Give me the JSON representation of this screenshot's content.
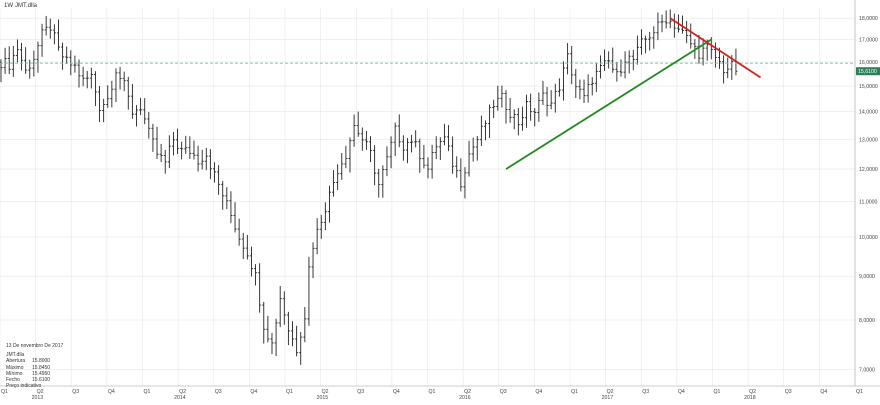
{
  "header": {
    "interval": "1W",
    "symbol": "JMT.dlla"
  },
  "info": {
    "date": "13 De novembro De 2017",
    "symbol": "JMT.dlla",
    "rows": [
      {
        "label": "Abertura",
        "value": "15.8000"
      },
      {
        "label": "Máximo",
        "value": "15.8450"
      },
      {
        "label": "Mínimo",
        "value": "15.4950"
      },
      {
        "label": "Fecho",
        "value": "15.6100"
      },
      {
        "label": "Preço indicativo",
        "value": ""
      }
    ]
  },
  "colors": {
    "bars": "#222222",
    "grid": "#e6e6e6",
    "uptrend": "#1f8a1f",
    "downtrend": "#d42020",
    "hline": "#6fc3a0",
    "price_tag": "#2e7d5b"
  },
  "chart_data": {
    "type": "ohlc",
    "y_scale": "log",
    "ylim": [
      6.7,
      18.5
    ],
    "y_ticks": [
      7,
      8,
      9,
      10,
      11,
      12,
      13,
      14,
      15,
      16,
      17,
      18
    ],
    "y_tick_labels": [
      "7,0000",
      "8,0000",
      "9,0000",
      "10,0000",
      "11,0000",
      "12,0000",
      "13,0000",
      "14,0000",
      "15,0000",
      "16,0000",
      "17,0000",
      "18,0000"
    ],
    "x_quarter_labels": [
      "Q1",
      "Q2",
      "Q3",
      "Q4",
      "Q1",
      "Q2",
      "Q3",
      "Q4",
      "Q1",
      "Q2",
      "Q3",
      "Q4",
      "Q1",
      "Q2",
      "Q3",
      "Q4",
      "Q1",
      "Q2",
      "Q3",
      "Q4",
      "Q1",
      "Q2",
      "Q3",
      "Q4",
      "Q1"
    ],
    "x_year_labels": [
      {
        "label": "2013",
        "quarter_index": 1
      },
      {
        "label": "2014",
        "quarter_index": 5
      },
      {
        "label": "2015",
        "quarter_index": 9
      },
      {
        "label": "2016",
        "quarter_index": 13
      },
      {
        "label": "2017",
        "quarter_index": 17
      },
      {
        "label": "2018",
        "quarter_index": 21
      }
    ],
    "anchors": [
      [
        0,
        16.0
      ],
      [
        2,
        15.9
      ],
      [
        4,
        16.6
      ],
      [
        6,
        15.6
      ],
      [
        8,
        16.2
      ],
      [
        10,
        17.2
      ],
      [
        12,
        17.6
      ],
      [
        14,
        16.5
      ],
      [
        16,
        16.0
      ],
      [
        18,
        15.8
      ],
      [
        20,
        15.2
      ],
      [
        22,
        15.4
      ],
      [
        24,
        14.2
      ],
      [
        26,
        14.5
      ],
      [
        28,
        15.7
      ],
      [
        30,
        15.0
      ],
      [
        32,
        14.0
      ],
      [
        34,
        14.2
      ],
      [
        36,
        13.2
      ],
      [
        38,
        12.5
      ],
      [
        40,
        12.2
      ],
      [
        42,
        13.0
      ],
      [
        44,
        12.6
      ],
      [
        46,
        12.6
      ],
      [
        48,
        12.3
      ],
      [
        50,
        12.5
      ],
      [
        52,
        11.8
      ],
      [
        54,
        11.2
      ],
      [
        56,
        10.6
      ],
      [
        58,
        10.0
      ],
      [
        60,
        9.6
      ],
      [
        62,
        9.0
      ],
      [
        64,
        7.9
      ],
      [
        66,
        7.5
      ],
      [
        68,
        8.5
      ],
      [
        70,
        7.8
      ],
      [
        72,
        7.4
      ],
      [
        74,
        8.1
      ],
      [
        75,
        9.2
      ],
      [
        76,
        9.8
      ],
      [
        78,
        10.5
      ],
      [
        80,
        11.2
      ],
      [
        82,
        12.0
      ],
      [
        84,
        12.5
      ],
      [
        86,
        13.5
      ],
      [
        88,
        13.0
      ],
      [
        90,
        12.5
      ],
      [
        92,
        11.5
      ],
      [
        94,
        12.3
      ],
      [
        96,
        13.3
      ],
      [
        98,
        12.8
      ],
      [
        100,
        13.0
      ],
      [
        102,
        12.5
      ],
      [
        104,
        12.0
      ],
      [
        106,
        12.8
      ],
      [
        108,
        13.0
      ],
      [
        110,
        12.2
      ],
      [
        112,
        11.6
      ],
      [
        114,
        12.5
      ],
      [
        116,
        13.0
      ],
      [
        118,
        13.6
      ],
      [
        120,
        14.3
      ],
      [
        122,
        14.5
      ],
      [
        124,
        14.0
      ],
      [
        126,
        13.6
      ],
      [
        128,
        14.2
      ],
      [
        130,
        14.0
      ],
      [
        132,
        14.6
      ],
      [
        134,
        14.3
      ],
      [
        136,
        15.0
      ],
      [
        138,
        16.2
      ],
      [
        140,
        15.0
      ],
      [
        142,
        14.5
      ],
      [
        144,
        15.3
      ],
      [
        146,
        15.7
      ],
      [
        148,
        16.0
      ],
      [
        150,
        15.4
      ],
      [
        152,
        16.2
      ],
      [
        154,
        16.1
      ],
      [
        156,
        16.8
      ],
      [
        158,
        17.2
      ],
      [
        160,
        17.6
      ],
      [
        162,
        18.0
      ],
      [
        164,
        17.7
      ],
      [
        166,
        17.3
      ],
      [
        168,
        16.8
      ],
      [
        170,
        16.4
      ],
      [
        172,
        16.6
      ],
      [
        174,
        16.2
      ],
      [
        176,
        15.7
      ],
      [
        178,
        15.8
      ],
      [
        179,
        15.61
      ]
    ],
    "weeks_total": 208,
    "last_close": 15.61,
    "last_close_label": "15,6100",
    "reference_line": 15.95,
    "trendlines": [
      {
        "name": "uptrend",
        "color": "#1f8a1f",
        "from": [
          123,
          12.0
        ],
        "to": [
          173,
          17.0
        ]
      },
      {
        "name": "downtrend",
        "color": "#d42020",
        "from": [
          163,
          18.0
        ],
        "to": [
          185,
          15.35
        ]
      }
    ]
  }
}
